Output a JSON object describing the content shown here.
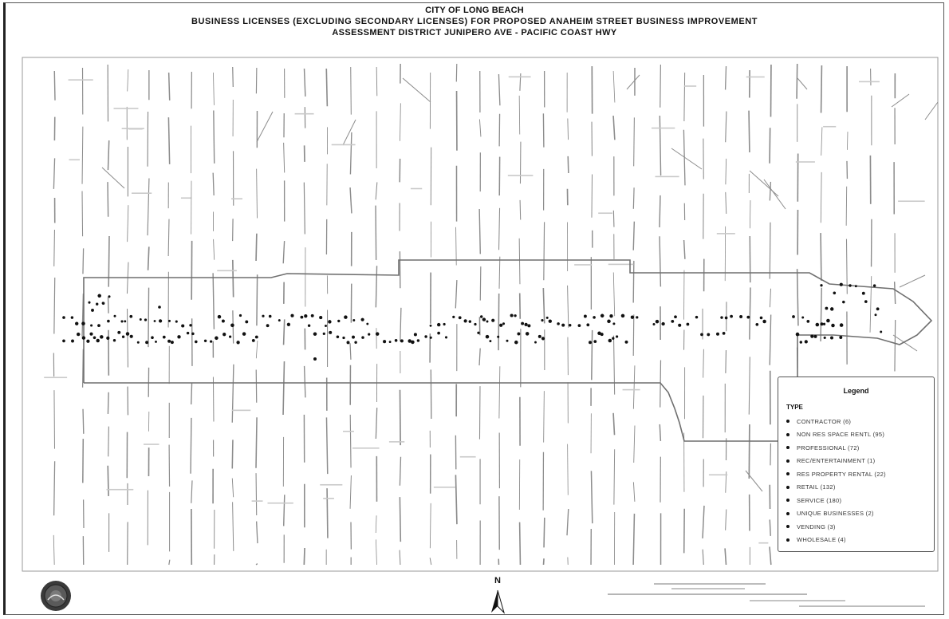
{
  "title": {
    "line1": "CITY OF LONG BEACH",
    "line2": "BUSINESS LICENSES (EXCLUDING SECONDARY LICENSES) FOR PROPOSED ANAHEIM STREET BUSINESS IMPROVEMENT",
    "line3": "ASSESSMENT DISTRICT JUNIPERO AVE - PACIFIC COAST HWY"
  },
  "legend": {
    "heading": "Legend",
    "type_label": "TYPE",
    "items": [
      {
        "label": "CONTRACTOR (6)"
      },
      {
        "label": "NON RES SPACE RENTL (95)"
      },
      {
        "label": "PROFESSIONAL (72)"
      },
      {
        "label": "REC/ENTERTAINMENT (1)"
      },
      {
        "label": "RES PROPERTY RENTAL (22)"
      },
      {
        "label": "RETAIL (132)"
      },
      {
        "label": "SERVICE (180)"
      },
      {
        "label": "UNIQUE BUSINESSES (2)"
      },
      {
        "label": "VENDING (3)"
      },
      {
        "label": "WHOLESALE (4)"
      }
    ]
  },
  "north_arrow": {
    "label": "N",
    "icon": "north-arrow-icon"
  },
  "seal": {
    "icon": "city-seal-icon"
  },
  "colors": {
    "ink": "#111111",
    "street": "#8c8c8c",
    "boundary": "#6f6f6f",
    "legend_text": "#333333"
  }
}
